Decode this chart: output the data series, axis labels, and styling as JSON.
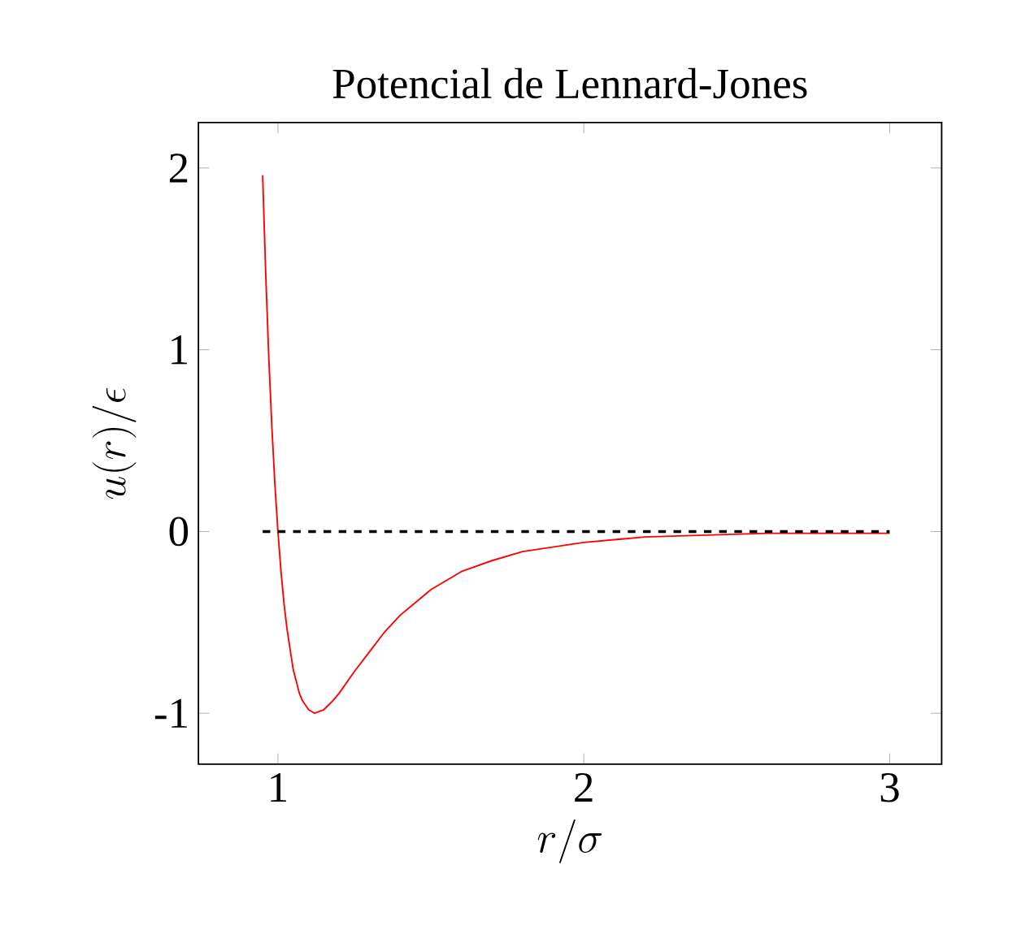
{
  "chart_data": {
    "type": "line",
    "title": "Potencial de Lennard-Jones",
    "xlabel": "r/\\sigma",
    "ylabel": "u(r)/\\epsilon",
    "xlim": [
      0.74,
      3.17
    ],
    "ylim": [
      -1.28,
      2.25
    ],
    "xticks": [
      1,
      2,
      3
    ],
    "yticks": [
      -1,
      0,
      1,
      2
    ],
    "grid": false,
    "marker": "none",
    "series": [
      {
        "color": "#ff0000",
        "line_style": "solid",
        "x": [
          0.95,
          0.96,
          0.97,
          0.98,
          0.99,
          1.0,
          1.01,
          1.02,
          1.03,
          1.05,
          1.07,
          1.08,
          1.1,
          1.12,
          1.15,
          1.18,
          1.2,
          1.25,
          1.3,
          1.35,
          1.4,
          1.5,
          1.6,
          1.7,
          1.8,
          2.0,
          2.2,
          2.4,
          2.6,
          2.8,
          3.0
        ],
        "values": [
          1.96,
          1.42,
          0.96,
          0.58,
          0.26,
          0,
          -0.22,
          -0.4,
          -0.54,
          -0.76,
          -0.89,
          -0.93,
          -0.98,
          -1.0,
          -0.98,
          -0.93,
          -0.89,
          -0.77,
          -0.66,
          -0.55,
          -0.46,
          -0.32,
          -0.22,
          -0.16,
          -0.11,
          -0.06,
          -0.03,
          -0.02,
          -0.01,
          -0.01,
          -0.01
        ]
      },
      {
        "color": "#000000",
        "line_style": "dashed",
        "x": [
          0.95,
          3.0
        ],
        "values": [
          0,
          0
        ]
      }
    ]
  }
}
